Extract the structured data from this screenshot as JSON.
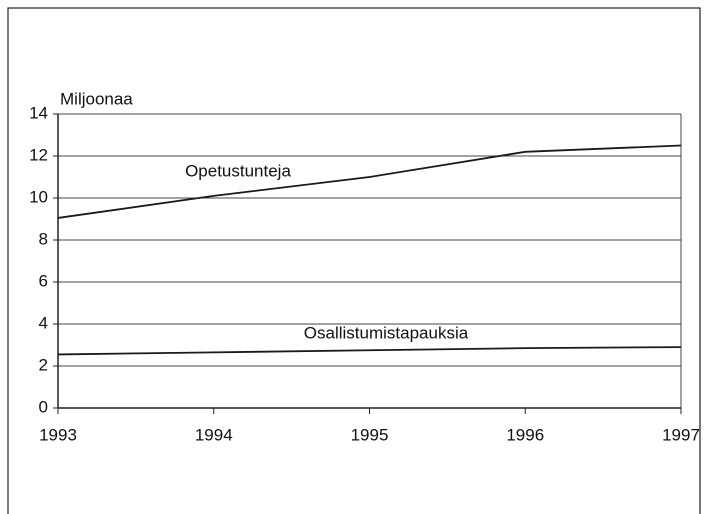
{
  "chart_data": {
    "type": "line",
    "y_label": "Miljoonaa",
    "x": [
      1993,
      1994,
      1995,
      1996,
      1997
    ],
    "xlim": [
      1993,
      1997
    ],
    "xticks": [
      1993,
      1994,
      1995,
      1996,
      1997
    ],
    "ylim": [
      0,
      14
    ],
    "yticks": [
      0,
      2,
      4,
      6,
      8,
      10,
      12,
      14
    ],
    "grid": true,
    "series": [
      {
        "name": "Opetustunteja",
        "color": "#1a1a1a",
        "values": [
          9.05,
          10.1,
          11.0,
          12.2,
          12.5
        ]
      },
      {
        "name": "Osallistumistapauksia",
        "color": "#1a1a1a",
        "values": [
          2.55,
          2.65,
          2.75,
          2.85,
          2.9
        ]
      }
    ]
  }
}
